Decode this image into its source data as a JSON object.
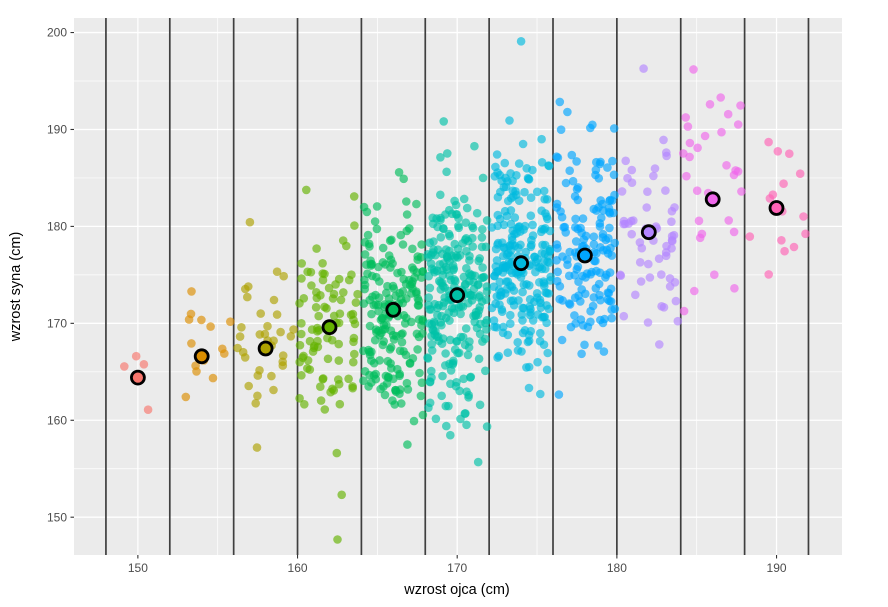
{
  "chart_data": {
    "type": "scatter",
    "title": "",
    "xlabel": "wzrost ojca (cm)",
    "ylabel": "wzrost syna (cm)",
    "x_ticks": [
      150,
      160,
      170,
      180,
      190
    ],
    "y_ticks": [
      150,
      160,
      170,
      180,
      190,
      200
    ],
    "x_minor": [
      155,
      165,
      175,
      185
    ],
    "y_minor": [
      155,
      165,
      175,
      185,
      195
    ],
    "xlim": [
      146.0,
      194.1
    ],
    "ylim": [
      146.1,
      201.5
    ],
    "grid": true,
    "legend": "none",
    "bin_width_cm": 4,
    "bin_boundaries": [
      148,
      152,
      156,
      160,
      164,
      168,
      172,
      176,
      180,
      184,
      188,
      192
    ],
    "colors": {
      "panel_bg": "#EBEBEB",
      "grid": "#FFFFFF",
      "vline": "#3F3F3F",
      "tick_text": "#4D4D4D",
      "tick_mark": "#333333",
      "axis_title": "#000000",
      "mean_outline": "#000000"
    },
    "point_alpha": 0.65,
    "seed": 42,
    "bins": [
      {
        "father_range": [
          148,
          152
        ],
        "color": "#F8766D",
        "count": 4,
        "son_mean": 164.4,
        "son_sd": 1.8
      },
      {
        "father_range": [
          152,
          156
        ],
        "color": "#DB8E00",
        "count": 14,
        "son_mean": 166.6,
        "son_sd": 4.2
      },
      {
        "father_range": [
          156,
          160
        ],
        "color": "#AEA200",
        "count": 34,
        "son_mean": 167.4,
        "son_sd": 4.8
      },
      {
        "father_range": [
          160,
          164
        ],
        "color": "#64B200",
        "count": 90,
        "son_mean": 169.6,
        "son_sd": 5.4
      },
      {
        "father_range": [
          164,
          168
        ],
        "color": "#00BD5C",
        "count": 190,
        "son_mean": 171.4,
        "son_sd": 5.6
      },
      {
        "father_range": [
          168,
          172
        ],
        "color": "#00C1A7",
        "count": 250,
        "son_mean": 172.9,
        "son_sd": 5.8
      },
      {
        "father_range": [
          172,
          176
        ],
        "color": "#00BADE",
        "count": 240,
        "son_mean": 176.2,
        "son_sd": 5.8
      },
      {
        "father_range": [
          176,
          180
        ],
        "color": "#00A6FF",
        "count": 150,
        "son_mean": 177.0,
        "son_sd": 5.6
      },
      {
        "father_range": [
          180,
          184
        ],
        "color": "#B385FF",
        "count": 58,
        "son_mean": 179.4,
        "son_sd": 5.2
      },
      {
        "father_range": [
          184,
          188
        ],
        "color": "#EF67EB",
        "count": 30,
        "son_mean": 182.8,
        "son_sd": 5.2
      },
      {
        "father_range": [
          188,
          192
        ],
        "color": "#FF63B6",
        "count": 13,
        "son_mean": 181.9,
        "son_sd": 5.0
      }
    ],
    "bin_means": [
      {
        "father": 150,
        "son": 164.4
      },
      {
        "father": 154,
        "son": 166.6
      },
      {
        "father": 158,
        "son": 167.4
      },
      {
        "father": 162,
        "son": 169.6
      },
      {
        "father": 166,
        "son": 171.4
      },
      {
        "father": 170,
        "son": 172.9
      },
      {
        "father": 174,
        "son": 176.2
      },
      {
        "father": 178,
        "son": 177.0
      },
      {
        "father": 182,
        "son": 179.4
      },
      {
        "father": 186,
        "son": 182.8
      },
      {
        "father": 190,
        "son": 181.9
      }
    ],
    "extra_points": [
      {
        "father": 174.0,
        "son": 199.1,
        "bin": 6
      },
      {
        "father": 184.8,
        "son": 196.2,
        "bin": 9
      },
      {
        "father": 186.5,
        "son": 193.3,
        "bin": 9
      },
      {
        "father": 162.5,
        "son": 147.7,
        "bin": 3
      },
      {
        "father": 189.5,
        "son": 188.7,
        "bin": 10
      },
      {
        "father": 190.8,
        "son": 187.5,
        "bin": 10
      }
    ]
  }
}
